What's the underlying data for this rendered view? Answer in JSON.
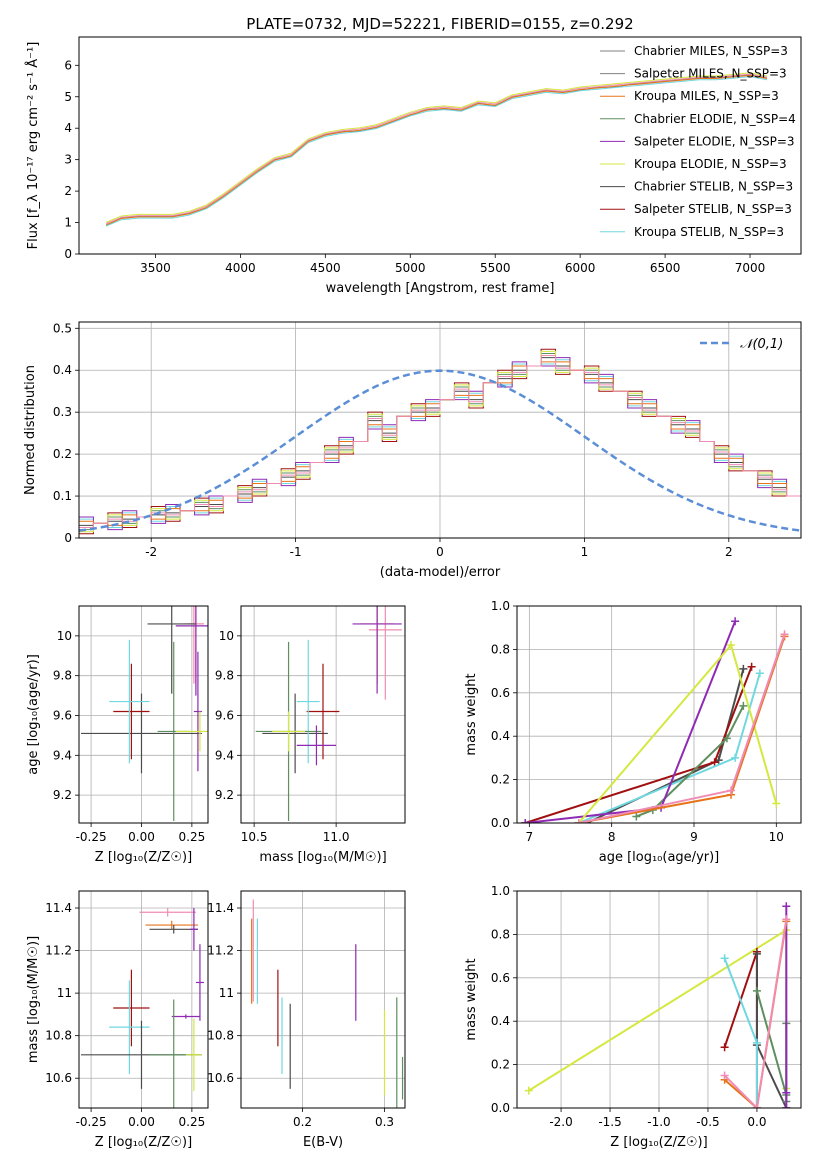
{
  "figure": {
    "title": "PLATE=0732, MJD=52221, FIBERID=0155, z=0.292",
    "model_colors": [
      "#4c4c4c",
      "#a01010",
      "#70d8e0",
      "#5e8f5e",
      "#8e2ab4",
      "#d4e840",
      "#e6741a",
      "#f08cb4",
      "#808080"
    ]
  },
  "chart_data": [
    {
      "id": "spectrum",
      "type": "line",
      "title": "PLATE=0732, MJD=52221, FIBERID=0155, z=0.292",
      "xlabel": "wavelength [Angstrom, rest frame]",
      "ylabel": "Flux [f_λ 10⁻¹⁷ erg cm⁻² s⁻¹ Å⁻¹]",
      "xlim": [
        3050,
        7300
      ],
      "ylim": [
        0,
        6.9
      ],
      "xticks": [
        3500,
        4000,
        4500,
        5000,
        5500,
        6000,
        6500,
        7000
      ],
      "yticks": [
        0,
        1,
        2,
        3,
        4,
        5,
        6
      ],
      "grid": false,
      "legend_position": "top-right",
      "legend": [
        {
          "label": "Chabrier MILES, N_SSP=3",
          "color": "#808080"
        },
        {
          "label": "Salpeter MILES, N_SSP=3",
          "color": "#808080"
        },
        {
          "label": "Kroupa MILES, N_SSP=3",
          "color": "#e6741a"
        },
        {
          "label": "Chabrier ELODIE, N_SSP=4",
          "color": "#5e8f5e"
        },
        {
          "label": "Salpeter ELODIE, N_SSP=3",
          "color": "#8e2ab4"
        },
        {
          "label": "Kroupa ELODIE, N_SSP=3",
          "color": "#d4e840"
        },
        {
          "label": "Chabrier STELIB, N_SSP=3",
          "color": "#4c4c4c"
        },
        {
          "label": "Salpeter STELIB, N_SSP=3",
          "color": "#a01010"
        },
        {
          "label": "Kroupa STELIB, N_SSP=3",
          "color": "#70d8e0"
        }
      ],
      "data_series": {
        "name": "observed spectrum",
        "x": [
          3210,
          3300,
          3400,
          3500,
          3600,
          3700,
          3800,
          3900,
          4000,
          4100,
          4200,
          4300,
          4400,
          4500,
          4600,
          4700,
          4800,
          4900,
          5000,
          5100,
          5200,
          5300,
          5400,
          5500,
          5600,
          5700,
          5800,
          5900,
          6000,
          6100,
          6200,
          6300,
          6400,
          6500,
          6600,
          6700,
          6800,
          6900,
          7000,
          7100
        ],
        "y": [
          0.9,
          1.15,
          1.2,
          1.2,
          1.2,
          1.3,
          1.45,
          1.8,
          2.2,
          2.6,
          3.0,
          3.1,
          3.6,
          3.8,
          3.9,
          3.9,
          4.0,
          4.2,
          4.4,
          4.6,
          4.6,
          4.55,
          4.8,
          4.7,
          5.0,
          5.1,
          5.2,
          5.15,
          5.2,
          5.3,
          5.3,
          5.4,
          5.45,
          5.5,
          5.55,
          5.6,
          5.6,
          5.65,
          5.7,
          5.6
        ]
      },
      "model_series": {
        "x": [
          3210,
          3300,
          3400,
          3500,
          3600,
          3700,
          3800,
          3900,
          4000,
          4100,
          4200,
          4300,
          4400,
          4500,
          4600,
          4700,
          4800,
          4900,
          5000,
          5100,
          5200,
          5300,
          5400,
          5500,
          5600,
          5700,
          5800,
          5900,
          6000,
          6100,
          6200,
          6300,
          6400,
          6500,
          6600,
          6700,
          6800,
          6900,
          7000,
          7100
        ],
        "y": [
          0.95,
          1.15,
          1.2,
          1.2,
          1.2,
          1.3,
          1.5,
          1.85,
          2.25,
          2.65,
          3.0,
          3.15,
          3.6,
          3.8,
          3.9,
          3.95,
          4.05,
          4.25,
          4.45,
          4.6,
          4.65,
          4.6,
          4.8,
          4.75,
          5.0,
          5.1,
          5.2,
          5.15,
          5.25,
          5.3,
          5.35,
          5.4,
          5.45,
          5.5,
          5.55,
          5.6,
          5.6,
          5.65,
          5.7,
          5.6
        ]
      }
    },
    {
      "id": "residuals",
      "type": "line",
      "xlabel": "(data-model)/error",
      "ylabel": "Normed distribution",
      "xlim": [
        -2.5,
        2.5
      ],
      "ylim": [
        0,
        0.515
      ],
      "xticks": [
        -2,
        -1,
        0,
        1,
        2
      ],
      "yticks": [
        0.0,
        0.1,
        0.2,
        0.3,
        0.4,
        0.5
      ],
      "grid": true,
      "legend_position": "top-right",
      "legend": [
        {
          "label": "𝒩(0,1)",
          "color": "#5b8ed6"
        }
      ],
      "bin_width": 0.1,
      "bin_start": -2.5,
      "hist_values": [
        0.03,
        0.035,
        0.04,
        0.045,
        0.05,
        0.055,
        0.06,
        0.065,
        0.075,
        0.08,
        0.1,
        0.105,
        0.12,
        0.13,
        0.145,
        0.16,
        0.18,
        0.2,
        0.22,
        0.23,
        0.28,
        0.25,
        0.29,
        0.3,
        0.31,
        0.33,
        0.35,
        0.33,
        0.37,
        0.38,
        0.4,
        0.41,
        0.43,
        0.41,
        0.4,
        0.39,
        0.37,
        0.35,
        0.33,
        0.31,
        0.29,
        0.27,
        0.26,
        0.23,
        0.2,
        0.18,
        0.16,
        0.14,
        0.12,
        0.1,
        0.085,
        0.07,
        0.06,
        0.05,
        0.045,
        0.04,
        0.035,
        0.03,
        0.025,
        0.02
      ],
      "gaussian": {
        "mu": 0,
        "sigma": 1
      }
    },
    {
      "id": "age-vs-Z",
      "type": "scatter",
      "xlabel": "Z [log₁₀(Z/Z☉)]",
      "ylabel": "age  [log₁₀(age/yr)]",
      "xlim": [
        -0.31,
        0.33
      ],
      "ylim": [
        9.06,
        10.15
      ],
      "xticks": [
        "-0.25",
        "0.00",
        "0.25"
      ],
      "xtick_values": [
        -0.25,
        0,
        0.25
      ],
      "yticks": [
        9.2,
        9.4,
        9.6,
        9.8,
        10.0
      ],
      "grid": true,
      "points": [
        {
          "x": 0.27,
          "y": 10.06,
          "xerr": 0.04,
          "yerr": 0.3,
          "c": 6
        },
        {
          "x": 0.26,
          "y": 10.06,
          "xerr": 0.05,
          "yerr": 0.3,
          "c": 7
        },
        {
          "x": 0.27,
          "y": 10.05,
          "xerr": 0.1,
          "yerr": 0.35,
          "c": 4
        },
        {
          "x": 0.15,
          "y": 10.06,
          "xerr": 0.12,
          "yerr": 0.35,
          "c": 0
        },
        {
          "x": 0.0,
          "y": 9.51,
          "xerr": 0.3,
          "yerr": 0.2,
          "c": 0
        },
        {
          "x": -0.05,
          "y": 9.62,
          "xerr": 0.09,
          "yerr": 0.24,
          "c": 1
        },
        {
          "x": -0.06,
          "y": 9.67,
          "xerr": 0.1,
          "yerr": 0.31,
          "c": 2
        },
        {
          "x": 0.16,
          "y": 9.52,
          "xerr": 0.08,
          "yerr": 0.45,
          "c": 3
        },
        {
          "x": 0.28,
          "y": 9.62,
          "xerr": 0.02,
          "yerr": 0.3,
          "c": 4
        },
        {
          "x": 0.29,
          "y": 9.52,
          "xerr": 0.12,
          "yerr": 0.1,
          "c": 5
        }
      ]
    },
    {
      "id": "age-vs-mass",
      "type": "scatter",
      "xlabel": "mass [log₁₀(M/M☉)]",
      "ylabel": "",
      "xlim": [
        10.42,
        11.42
      ],
      "ylim": [
        9.06,
        10.15
      ],
      "xticks": [
        "10.5",
        "11.0"
      ],
      "xtick_values": [
        10.5,
        11.0
      ],
      "yticks": [
        9.2,
        9.4,
        9.6,
        9.8,
        10.0
      ],
      "grid": true,
      "points": [
        {
          "x": 11.25,
          "y": 10.06,
          "xerr": 0.1,
          "yerr": 0.3,
          "c": 6
        },
        {
          "x": 11.3,
          "y": 10.03,
          "xerr": 0.1,
          "yerr": 0.35,
          "c": 7
        },
        {
          "x": 11.25,
          "y": 10.06,
          "xerr": 0.15,
          "yerr": 0.35,
          "c": 4
        },
        {
          "x": 10.75,
          "y": 9.51,
          "xerr": 0.2,
          "yerr": 0.2,
          "c": 0
        },
        {
          "x": 10.92,
          "y": 9.62,
          "xerr": 0.1,
          "yerr": 0.24,
          "c": 1
        },
        {
          "x": 10.83,
          "y": 9.67,
          "xerr": 0.07,
          "yerr": 0.31,
          "c": 2
        },
        {
          "x": 10.71,
          "y": 9.52,
          "xerr": 0.2,
          "yerr": 0.45,
          "c": 3
        },
        {
          "x": 10.88,
          "y": 9.45,
          "xerr": 0.12,
          "yerr": 0.1,
          "c": 4
        },
        {
          "x": 10.71,
          "y": 9.52,
          "xerr": 0.1,
          "yerr": 0.1,
          "c": 5
        }
      ]
    },
    {
      "id": "weight-vs-age",
      "type": "line",
      "xlabel": "age  [log₁₀(age/yr)]",
      "ylabel": "mass weight",
      "xlim": [
        6.85,
        10.3
      ],
      "ylim": [
        0,
        1.0
      ],
      "xticks": [
        7,
        8,
        9,
        10
      ],
      "yticks": [
        "0.0",
        "0.2",
        "0.4",
        "0.6",
        "0.8",
        "1.0"
      ],
      "ytick_values": [
        0,
        0.2,
        0.4,
        0.6,
        0.8,
        1.0
      ],
      "grid": true,
      "series": [
        {
          "c": 0,
          "x": [
            7.7,
            9.3,
            9.6
          ],
          "y": [
            0.0,
            0.29,
            0.71
          ]
        },
        {
          "c": 1,
          "x": [
            6.95,
            9.25,
            9.7
          ],
          "y": [
            0.0,
            0.28,
            0.72
          ]
        },
        {
          "c": 2,
          "x": [
            7.6,
            9.5,
            9.8
          ],
          "y": [
            0.0,
            0.3,
            0.69
          ]
        },
        {
          "c": 3,
          "x": [
            8.3,
            8.5,
            9.4,
            9.6
          ],
          "y": [
            0.03,
            0.06,
            0.39,
            0.54
          ]
        },
        {
          "c": 4,
          "x": [
            6.95,
            8.6,
            9.5
          ],
          "y": [
            0.0,
            0.07,
            0.93
          ]
        },
        {
          "c": 5,
          "x": [
            7.6,
            9.45,
            10.0
          ],
          "y": [
            0.0,
            0.82,
            0.09
          ]
        },
        {
          "c": 6,
          "x": [
            7.6,
            9.45,
            10.1
          ],
          "y": [
            0.0,
            0.13,
            0.86
          ]
        },
        {
          "c": 7,
          "x": [
            7.6,
            9.45,
            10.1
          ],
          "y": [
            0.0,
            0.15,
            0.87
          ]
        }
      ]
    },
    {
      "id": "mass-vs-Z",
      "type": "scatter",
      "xlabel": "Z [log₁₀(Z/Z☉)]",
      "ylabel": "mass [log₁₀(M/M☉)]",
      "xlim": [
        -0.31,
        0.33
      ],
      "ylim": [
        10.46,
        11.48
      ],
      "xticks": [
        "-0.25",
        "0.00",
        "0.25"
      ],
      "xtick_values": [
        -0.25,
        0,
        0.25
      ],
      "yticks": [
        10.6,
        10.8,
        11.0,
        11.2,
        11.4
      ],
      "grid": true,
      "points": [
        {
          "x": 0.13,
          "y": 11.38,
          "xerr": 0.14,
          "yerr": 0.02,
          "c": 7
        },
        {
          "x": 0.15,
          "y": 11.32,
          "xerr": 0.13,
          "yerr": 0.02,
          "c": 6
        },
        {
          "x": 0.16,
          "y": 11.3,
          "xerr": 0.12,
          "yerr": 0.02,
          "c": 0
        },
        {
          "x": 0.26,
          "y": 11.3,
          "xerr": 0.02,
          "yerr": 0.1,
          "c": 4
        },
        {
          "x": 0.29,
          "y": 11.05,
          "xerr": 0.02,
          "yerr": 0.18,
          "c": 4
        },
        {
          "x": -0.05,
          "y": 10.93,
          "xerr": 0.09,
          "yerr": 0.18,
          "c": 1
        },
        {
          "x": 0.22,
          "y": 10.89,
          "xerr": 0.07,
          "yerr": 0.01,
          "c": 4
        },
        {
          "x": -0.06,
          "y": 10.84,
          "xerr": 0.1,
          "yerr": 0.22,
          "c": 2
        },
        {
          "x": 0.0,
          "y": 10.71,
          "xerr": 0.3,
          "yerr": 0.16,
          "c": 0
        },
        {
          "x": 0.16,
          "y": 10.71,
          "xerr": 0.12,
          "yerr": 0.26,
          "c": 3
        },
        {
          "x": 0.26,
          "y": 10.71,
          "xerr": 0.04,
          "yerr": 0.17,
          "c": 5
        }
      ]
    },
    {
      "id": "mass-vs-EBV",
      "type": "scatter",
      "xlabel": "E(B-V)",
      "ylabel": "",
      "xlim": [
        0.125,
        0.325
      ],
      "ylim": [
        10.46,
        11.48
      ],
      "xticks": [
        "0.2",
        "0.3"
      ],
      "xtick_values": [
        0.2,
        0.3
      ],
      "yticks": [
        10.6,
        10.8,
        11.0,
        11.2,
        11.4
      ],
      "grid": true,
      "points": [
        {
          "x": 0.138,
          "y": 11.15,
          "yerr": 0.2,
          "c": 6
        },
        {
          "x": 0.14,
          "y": 11.2,
          "yerr": 0.24,
          "c": 7
        },
        {
          "x": 0.145,
          "y": 11.15,
          "yerr": 0.2,
          "c": 2
        },
        {
          "x": 0.17,
          "y": 10.93,
          "yerr": 0.18,
          "c": 1
        },
        {
          "x": 0.175,
          "y": 10.8,
          "yerr": 0.18,
          "c": 2
        },
        {
          "x": 0.185,
          "y": 10.75,
          "yerr": 0.2,
          "c": 0
        },
        {
          "x": 0.265,
          "y": 11.05,
          "yerr": 0.18,
          "c": 4
        },
        {
          "x": 0.3,
          "y": 10.72,
          "yerr": 0.2,
          "c": 5
        },
        {
          "x": 0.315,
          "y": 10.72,
          "yerr": 0.26,
          "c": 3
        },
        {
          "x": 0.322,
          "y": 10.6,
          "yerr": 0.1,
          "c": 3
        }
      ]
    },
    {
      "id": "weight-vs-Z",
      "type": "line",
      "xlabel": "Z [log₁₀(Z/Z☉)]",
      "ylabel": "mass weight",
      "xlim": [
        -2.45,
        0.45
      ],
      "ylim": [
        0,
        1.0
      ],
      "xticks": [
        "-2.0",
        "-1.5",
        "-1.0",
        "-0.5",
        "0.0"
      ],
      "xtick_values": [
        -2.0,
        -1.5,
        -1.0,
        -0.5,
        0.0
      ],
      "yticks": [
        "0.0",
        "0.2",
        "0.4",
        "0.6",
        "0.8",
        "1.0"
      ],
      "ytick_values": [
        0,
        0.2,
        0.4,
        0.6,
        0.8,
        1.0
      ],
      "grid": true,
      "series": [
        {
          "c": 5,
          "x": [
            -2.33,
            0.3,
            0.3
          ],
          "y": [
            0.08,
            0.82,
            0.09
          ]
        },
        {
          "c": 1,
          "x": [
            -0.33,
            0.0,
            0.0
          ],
          "y": [
            0.28,
            0.72,
            0.0
          ]
        },
        {
          "c": 0,
          "x": [
            0.0,
            0.0,
            0.3
          ],
          "y": [
            0.71,
            0.29,
            0.0
          ]
        },
        {
          "c": 2,
          "x": [
            -0.33,
            0.0,
            0.0
          ],
          "y": [
            0.69,
            0.3,
            0.0
          ]
        },
        {
          "c": 3,
          "x": [
            0.0,
            0.3,
            0.3,
            0.3
          ],
          "y": [
            0.54,
            0.06,
            0.39,
            0.03
          ]
        },
        {
          "c": 4,
          "x": [
            0.3,
            0.3,
            0.3
          ],
          "y": [
            0.93,
            0.07,
            0.0
          ]
        },
        {
          "c": 6,
          "x": [
            -0.33,
            0.0,
            0.3
          ],
          "y": [
            0.13,
            0.0,
            0.86
          ]
        },
        {
          "c": 7,
          "x": [
            -0.33,
            0.0,
            0.3
          ],
          "y": [
            0.15,
            0.0,
            0.87
          ]
        }
      ]
    }
  ]
}
